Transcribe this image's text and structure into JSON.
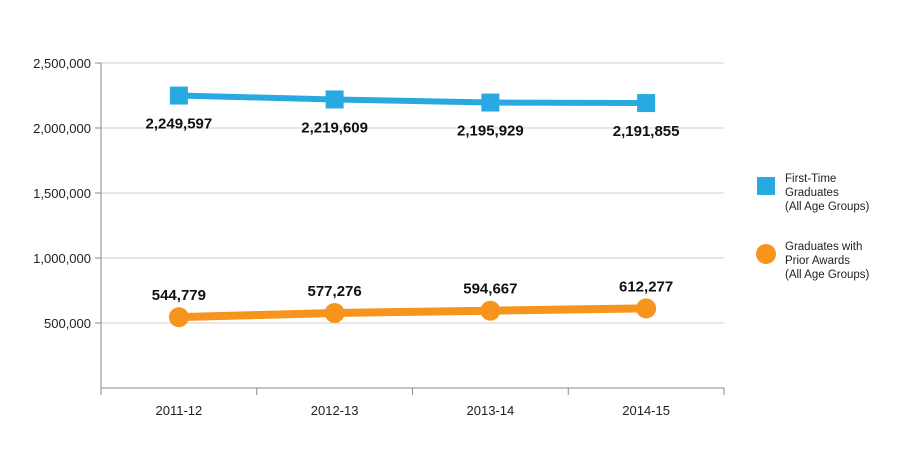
{
  "chart_data": {
    "type": "line",
    "title": "",
    "xlabel": "",
    "ylabel": "",
    "categories": [
      "2011-12",
      "2012-13",
      "2013-14",
      "2014-15"
    ],
    "ylim": [
      0,
      2500000
    ],
    "yticks": [
      500000,
      1000000,
      1500000,
      2000000,
      2500000
    ],
    "ytick_labels": [
      "500,000",
      "1,000,000",
      "1,500,000",
      "2,000,000",
      "2,500,000"
    ],
    "grid": true,
    "legend_position": "right",
    "series": [
      {
        "name": "First-Time Graduates (All Age Groups)",
        "legend_lines": [
          "First-Time",
          "Graduates",
          "(All Age Groups)"
        ],
        "marker": "square",
        "color": "#29a9e1",
        "values": [
          2249597,
          2219609,
          2195929,
          2191855
        ],
        "labels": [
          "2,249,597",
          "2,219,609",
          "2,195,929",
          "2,191,855"
        ],
        "label_position": "below"
      },
      {
        "name": "Graduates with Prior Awards (All Age Groups)",
        "legend_lines": [
          "Graduates with",
          "Prior Awards",
          "(All Age Groups)"
        ],
        "marker": "circle",
        "color": "#f7941d",
        "values": [
          544779,
          577276,
          594667,
          612277
        ],
        "labels": [
          "544,779",
          "577,276",
          "594,667",
          "612,277"
        ],
        "label_position": "above"
      }
    ]
  }
}
